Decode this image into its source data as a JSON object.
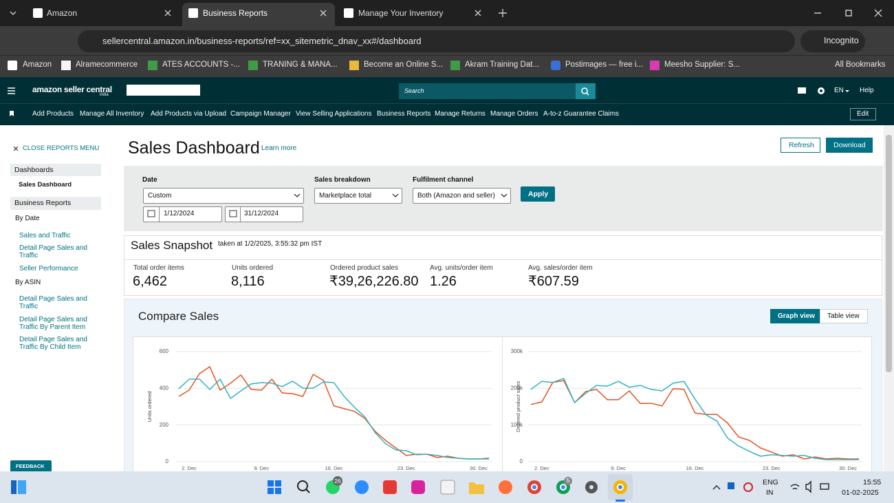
{
  "browser": {
    "tabs": [
      "Amazon",
      "Business Reports",
      "Manage Your Inventory"
    ],
    "url": "sellercentral.amazon.in/business-reports/ref=xx_sitemetric_dnav_xx#/dashboard",
    "incognito": "Incognito",
    "bookmarks": [
      "Amazon",
      "Alramecommerce",
      "ATES ACCOUNTS -...",
      "TRANING & MANA...",
      "Become an Online S...",
      "Akram Training Dat...",
      "Postimages — free i...",
      "Meesho Supplier: S..."
    ],
    "all_bookmarks": "All Bookmarks"
  },
  "header": {
    "logo": "amazon seller central",
    "logo_sub": "india",
    "search": "Search",
    "language": "EN",
    "help": "Help"
  },
  "nav": {
    "items": [
      "Add Products",
      "Manage All Inventory",
      "Add Products via Upload",
      "Campaign Manager",
      "View Selling Applications",
      "Business Reports",
      "Manage Returns",
      "Manage Orders",
      "A-to-z Guarantee Claims"
    ],
    "edit": "Edit"
  },
  "sidebar": {
    "close": "CLOSE REPORTS MENU",
    "dashboards": "Dashboards",
    "sales_dashboard": "Sales Dashboard",
    "business_reports": "Business Reports",
    "by_date": "By Date",
    "by_date_links": [
      "Sales and Traffic",
      "Detail Page Sales and Traffic",
      "Seller Performance"
    ],
    "by_asin": "By ASIN",
    "by_asin_links": [
      "Detail Page Sales and Traffic",
      "Detail Page Sales and Traffic By Parent Item",
      "Detail Page Sales and Traffic By Child Item"
    ],
    "feedback": "FEEDBACK"
  },
  "main": {
    "title": "Sales Dashboard",
    "learn_more": "Learn more",
    "refresh": "Refresh",
    "download": "Download"
  },
  "filters": {
    "date_label": "Date",
    "date_value": "Custom",
    "from": "1/12/2024",
    "to": "31/12/2024",
    "breakdown_label": "Sales breakdown",
    "breakdown_value": "Marketplace total",
    "fulfilment_label": "Fulfilment channel",
    "fulfilment_value": "Both (Amazon and seller)",
    "apply": "Apply"
  },
  "snapshot": {
    "title": "Sales Snapshot",
    "taken": "taken at 1/2/2025, 3:55:32 pm IST",
    "metrics": [
      {
        "label": "Total order items",
        "value": "6,462"
      },
      {
        "label": "Units ordered",
        "value": "8,116"
      },
      {
        "label": "Ordered product sales",
        "value": "₹39,26,226.80"
      },
      {
        "label": "Avg. units/order item",
        "value": "1.26"
      },
      {
        "label": "Avg. sales/order item",
        "value": "₹607.59"
      }
    ]
  },
  "compare": {
    "title": "Compare Sales",
    "graph_view": "Graph view",
    "table_view": "Table view"
  },
  "chart_data": [
    {
      "type": "line",
      "y_label": "Units ordered",
      "categories": [
        null,
        "2. Dec",
        null,
        null,
        null,
        null,
        null,
        null,
        "9. Dec",
        null,
        null,
        null,
        null,
        null,
        null,
        "16. Dec",
        null,
        null,
        null,
        null,
        null,
        null,
        "23. Dec",
        null,
        null,
        null,
        null,
        null,
        null,
        "30. Dec",
        null
      ],
      "ylim": [
        0,
        600
      ],
      "yticks": [
        0,
        200,
        400,
        600
      ],
      "grid": true,
      "series": [
        {
          "color": "#e2531f",
          "values": [
            356,
            390,
            480,
            518,
            390,
            428,
            473,
            394,
            390,
            450,
            375,
            371,
            356,
            476,
            443,
            304,
            289,
            274,
            236,
            165,
            116,
            75,
            34,
            41,
            41,
            23,
            30,
            19,
            15,
            15,
            19
          ]
        },
        {
          "color": "#2fb3be",
          "values": [
            398,
            450,
            450,
            394,
            450,
            345,
            386,
            424,
            431,
            428,
            409,
            439,
            401,
            401,
            435,
            431,
            356,
            296,
            244,
            158,
            98,
            64,
            60,
            38,
            41,
            34,
            23,
            19,
            15,
            15,
            15
          ]
        }
      ]
    },
    {
      "type": "line",
      "y_label": "Ordered product sales",
      "categories": [
        null,
        "2. Dec",
        null,
        null,
        null,
        null,
        null,
        null,
        "9. Dec",
        null,
        null,
        null,
        null,
        null,
        null,
        "16. Dec",
        null,
        null,
        null,
        null,
        null,
        null,
        "23. Dec",
        null,
        null,
        null,
        null,
        null,
        null,
        "30. Dec",
        null
      ],
      "ylim": [
        0,
        300000
      ],
      "yticks": [
        0,
        {
          "value": 100000,
          "label": "100k"
        },
        {
          "value": 200000,
          "label": "200k"
        },
        {
          "value": 300000,
          "label": "300k"
        }
      ],
      "grid": true,
      "series": [
        {
          "color": "#e2531f",
          "values": [
            156000,
            163000,
            216000,
            221000,
            161000,
            191000,
            197000,
            169000,
            169000,
            193000,
            159000,
            159000,
            152000,
            199000,
            197000,
            133000,
            129000,
            129000,
            105000,
            67500,
            58000,
            37500,
            26000,
            15000,
            19000,
            7500,
            13000,
            7500,
            9400,
            7500,
            7500
          ]
        },
        {
          "color": "#2fb3be",
          "values": [
            197000,
            219000,
            216000,
            227000,
            161000,
            186000,
            208000,
            206000,
            219000,
            203000,
            208000,
            197000,
            193000,
            214000,
            219000,
            171000,
            128000,
            111000,
            64000,
            43000,
            28000,
            15000,
            19000,
            17000,
            15000,
            17000,
            9400,
            5600,
            5600,
            5600,
            5600
          ]
        }
      ]
    }
  ],
  "taskbar": {
    "whatsapp_badge": "26",
    "chrome_badge": "5",
    "lang": "ENG",
    "region": "IN",
    "time": "15:55",
    "date": "01-02-2025"
  }
}
